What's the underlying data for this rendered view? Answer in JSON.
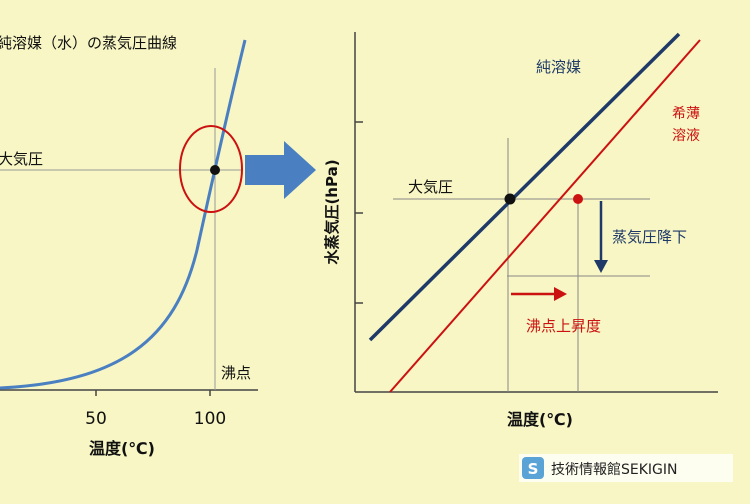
{
  "left_chart": {
    "title": "純溶媒（水）の蒸気圧曲線",
    "atm_label": "大気圧",
    "boiling_label": "沸点",
    "xlabel": "温度(℃)",
    "x_ticks": [
      "50",
      "100"
    ]
  },
  "right_chart": {
    "ylabel": "水蒸気圧(hPa)",
    "xlabel": "温度(℃)",
    "atm_label": "大気圧",
    "pure_label": "純溶媒",
    "dilute_label_1": "希薄",
    "dilute_label_2": "溶液",
    "vp_lowering_label": "蒸気圧降下",
    "bp_elevation_label": "沸点上昇度"
  },
  "watermark": {
    "icon": "S",
    "text": "技術情報館SEKIGIN"
  },
  "colors": {
    "background": "#f7f6c4",
    "pure_line": "#1f3a68",
    "dilute_line": "#cc1111",
    "curve_blue": "#4a7fc1",
    "arrow_blue": "#4a7fc1",
    "red_circle": "#cc1111",
    "guide_gray": "#888888"
  }
}
